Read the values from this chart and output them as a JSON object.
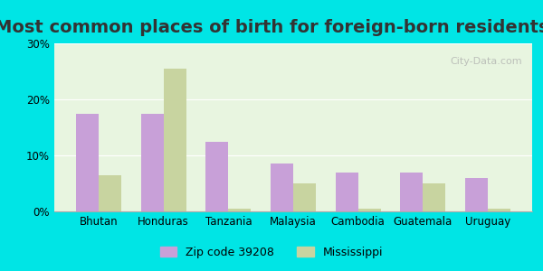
{
  "title": "Most common places of birth for foreign-born residents",
  "categories": [
    "Bhutan",
    "Honduras",
    "Tanzania",
    "Malaysia",
    "Cambodia",
    "Guatemala",
    "Uruguay"
  ],
  "zip_values": [
    17.5,
    17.5,
    12.5,
    8.5,
    7.0,
    7.0,
    6.0
  ],
  "ms_values": [
    6.5,
    25.5,
    0.5,
    5.0,
    0.5,
    5.0,
    0.5
  ],
  "zip_color": "#c8a0d8",
  "ms_color": "#c8d4a0",
  "ylim": [
    0,
    30
  ],
  "yticks": [
    0,
    10,
    20,
    30
  ],
  "ytick_labels": [
    "0%",
    "10%",
    "20%",
    "30%"
  ],
  "background_color": "#e8f5e0",
  "outer_background": "#00e5e5",
  "legend_zip_label": "Zip code 39208",
  "legend_ms_label": "Mississippi",
  "bar_width": 0.35,
  "title_fontsize": 14
}
